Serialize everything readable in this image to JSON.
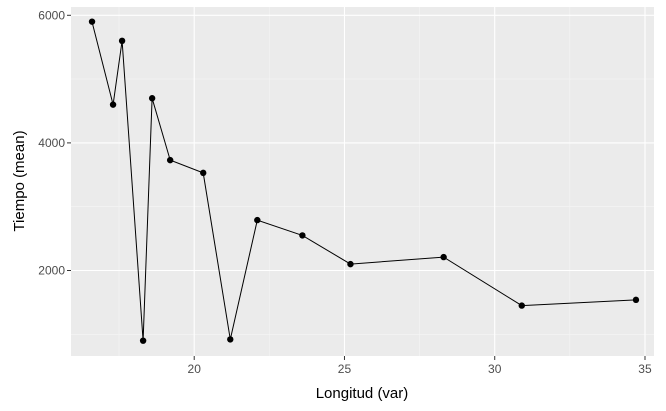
{
  "chart_data": {
    "type": "line",
    "title": "",
    "xlabel": "Longitud (var)",
    "ylabel": "Tiempo (mean)",
    "xlim": [
      15.9,
      35.3
    ],
    "ylim": [
      660,
      6130
    ],
    "x_ticks": [
      20,
      25,
      30,
      35
    ],
    "x_tick_labels": [
      "20",
      "25",
      "30",
      "35"
    ],
    "y_ticks": [
      2000,
      4000,
      6000
    ],
    "y_tick_labels": [
      "2000",
      "4000",
      "6000"
    ],
    "grid": true,
    "series": [
      {
        "marker": "circle",
        "color": "#000000",
        "points": [
          {
            "x": 16.6,
            "y": 5900
          },
          {
            "x": 17.3,
            "y": 4600
          },
          {
            "x": 17.6,
            "y": 5600
          },
          {
            "x": 18.3,
            "y": 900
          },
          {
            "x": 18.6,
            "y": 4700
          },
          {
            "x": 19.2,
            "y": 3730
          },
          {
            "x": 20.3,
            "y": 3530
          },
          {
            "x": 21.2,
            "y": 920
          },
          {
            "x": 22.1,
            "y": 2790
          },
          {
            "x": 23.6,
            "y": 2550
          },
          {
            "x": 25.2,
            "y": 2100
          },
          {
            "x": 28.3,
            "y": 2210
          },
          {
            "x": 30.9,
            "y": 1450
          },
          {
            "x": 34.7,
            "y": 1540
          }
        ]
      }
    ]
  },
  "colors": {
    "panel_background": "#ebebeb",
    "grid_major": "#ffffff",
    "grid_minor": "#f5f5f5",
    "line": "#000000",
    "point": "#000000"
  }
}
